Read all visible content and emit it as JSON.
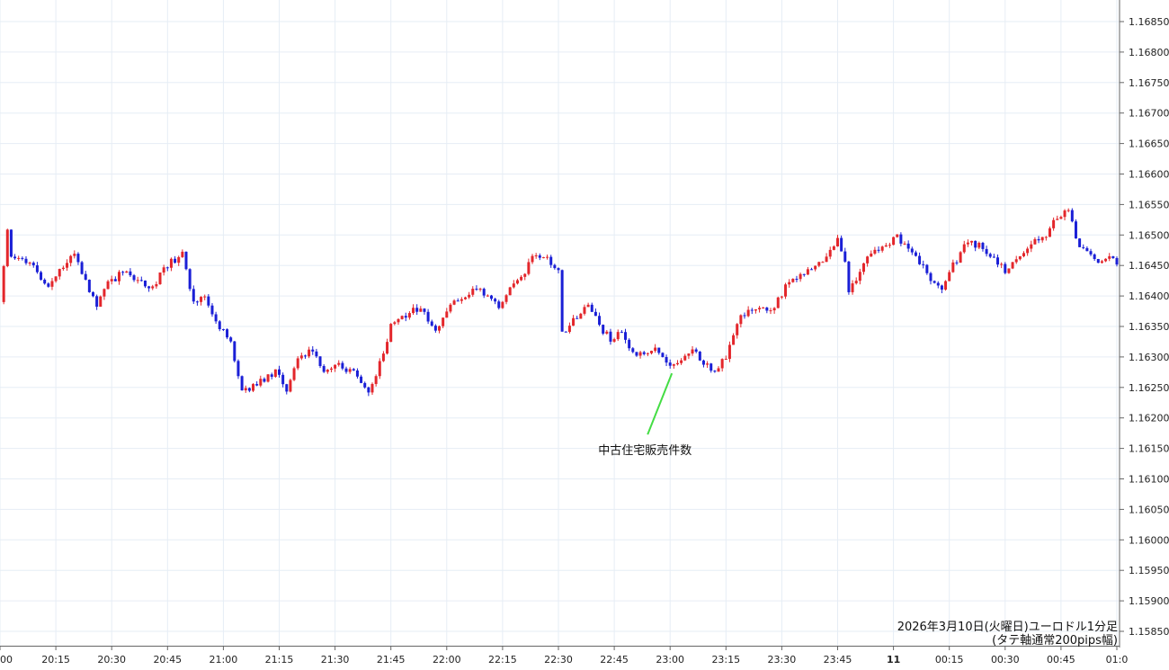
{
  "chart_data": {
    "type": "candlestick",
    "title_lines": [
      "2026年3月10日(火曜日)ユーロドル1分足",
      "(タテ軸通常200pips幅)"
    ],
    "x_tick_labels": [
      "00",
      "20:15",
      "20:30",
      "20:45",
      "21:00",
      "21:15",
      "21:30",
      "21:45",
      "22:00",
      "22:15",
      "22:30",
      "22:45",
      "23:00",
      "23:15",
      "23:30",
      "23:45",
      "11",
      "00:15",
      "00:30",
      "00:45",
      "01:0"
    ],
    "y_tick_labels": [
      "1.16850",
      "1.16800",
      "1.16750",
      "1.16700",
      "1.16650",
      "1.16600",
      "1.16550",
      "1.16500",
      "1.16450",
      "1.16400",
      "1.16350",
      "1.16300",
      "1.16250",
      "1.16200",
      "1.16150",
      "1.16100",
      "1.16050",
      "1.16000",
      "1.15950",
      "1.15900",
      "1.15850"
    ],
    "ylim": [
      1.1584,
      1.1688
    ],
    "colors": {
      "up": "#e3262b",
      "down": "#1a1fd6",
      "annotation_line": "#44dd44",
      "grid": "#e6edf5"
    },
    "annotation": {
      "text": "中古住宅販売件数",
      "x": "23:00",
      "y": 1.16285
    },
    "close_path": [
      [
        "20:00",
        1.1639
      ],
      [
        "20:02",
        1.16505
      ],
      [
        "20:03",
        1.16465
      ],
      [
        "20:07",
        1.16455
      ],
      [
        "20:10",
        1.1644
      ],
      [
        "20:13",
        1.1641
      ],
      [
        "20:17",
        1.1645
      ],
      [
        "20:20",
        1.1647
      ],
      [
        "20:23",
        1.16425
      ],
      [
        "20:26",
        1.1638
      ],
      [
        "20:29",
        1.1642
      ],
      [
        "20:33",
        1.1644
      ],
      [
        "20:37",
        1.16425
      ],
      [
        "20:41",
        1.16415
      ],
      [
        "20:45",
        1.1645
      ],
      [
        "20:49",
        1.1647
      ],
      [
        "20:52",
        1.1639
      ],
      [
        "20:55",
        1.16395
      ],
      [
        "20:59",
        1.1635
      ],
      [
        "21:02",
        1.1632
      ],
      [
        "21:05",
        1.1624
      ],
      [
        "21:08",
        1.16255
      ],
      [
        "21:11",
        1.1626
      ],
      [
        "21:14",
        1.1628
      ],
      [
        "21:17",
        1.1624
      ],
      [
        "21:20",
        1.163
      ],
      [
        "21:24",
        1.1631
      ],
      [
        "21:27",
        1.1628
      ],
      [
        "21:31",
        1.16285
      ],
      [
        "21:35",
        1.16275
      ],
      [
        "21:39",
        1.1624
      ],
      [
        "21:42",
        1.1629
      ],
      [
        "21:45",
        1.1635
      ],
      [
        "21:49",
        1.1637
      ],
      [
        "21:53",
        1.1638
      ],
      [
        "21:57",
        1.1634
      ],
      [
        "22:00",
        1.1638
      ],
      [
        "22:04",
        1.164
      ],
      [
        "22:07",
        1.1641
      ],
      [
        "22:11",
        1.16405
      ],
      [
        "22:14",
        1.1638
      ],
      [
        "22:17",
        1.1642
      ],
      [
        "22:20",
        1.1643
      ],
      [
        "22:24",
        1.1647
      ],
      [
        "22:27",
        1.1646
      ],
      [
        "22:30",
        1.16445
      ],
      [
        "22:31",
        1.1634
      ],
      [
        "22:34",
        1.1636
      ],
      [
        "22:38",
        1.1639
      ],
      [
        "22:41",
        1.1635
      ],
      [
        "22:44",
        1.1633
      ],
      [
        "22:47",
        1.1634
      ],
      [
        "22:50",
        1.16305
      ],
      [
        "22:53",
        1.1631
      ],
      [
        "22:57",
        1.1631
      ],
      [
        "23:00",
        1.1629
      ],
      [
        "23:03",
        1.16295
      ],
      [
        "23:06",
        1.1631
      ],
      [
        "23:09",
        1.1629
      ],
      [
        "23:12",
        1.1628
      ],
      [
        "23:15",
        1.163
      ],
      [
        "23:18",
        1.16355
      ],
      [
        "23:21",
        1.1638
      ],
      [
        "23:24",
        1.16385
      ],
      [
        "23:27",
        1.16375
      ],
      [
        "23:30",
        1.164
      ],
      [
        "23:31",
        1.1642
      ],
      [
        "23:33",
        1.1643
      ],
      [
        "23:36",
        1.1644
      ],
      [
        "23:39",
        1.16445
      ],
      [
        "23:42",
        1.1646
      ],
      [
        "23:45",
        1.1649
      ],
      [
        "23:47",
        1.16455
      ],
      [
        "23:48",
        1.1641
      ],
      [
        "23:51",
        1.1644
      ],
      [
        "23:54",
        1.1647
      ],
      [
        "23:58",
        1.1648
      ],
      [
        "00:01",
        1.165
      ],
      [
        "00:04",
        1.16475
      ],
      [
        "00:07",
        1.16455
      ],
      [
        "00:10",
        1.1643
      ],
      [
        "00:13",
        1.1641
      ],
      [
        "00:16",
        1.1645
      ],
      [
        "00:20",
        1.1649
      ],
      [
        "00:24",
        1.1648
      ],
      [
        "00:27",
        1.1646
      ],
      [
        "00:30",
        1.1644
      ],
      [
        "00:34",
        1.1646
      ],
      [
        "00:37",
        1.16485
      ],
      [
        "00:41",
        1.165
      ],
      [
        "00:44",
        1.1653
      ],
      [
        "00:47",
        1.16545
      ],
      [
        "00:49",
        1.1649
      ],
      [
        "00:52",
        1.1647
      ],
      [
        "00:55",
        1.1646
      ],
      [
        "00:58",
        1.16465
      ],
      [
        "01:00",
        1.16455
      ]
    ]
  }
}
